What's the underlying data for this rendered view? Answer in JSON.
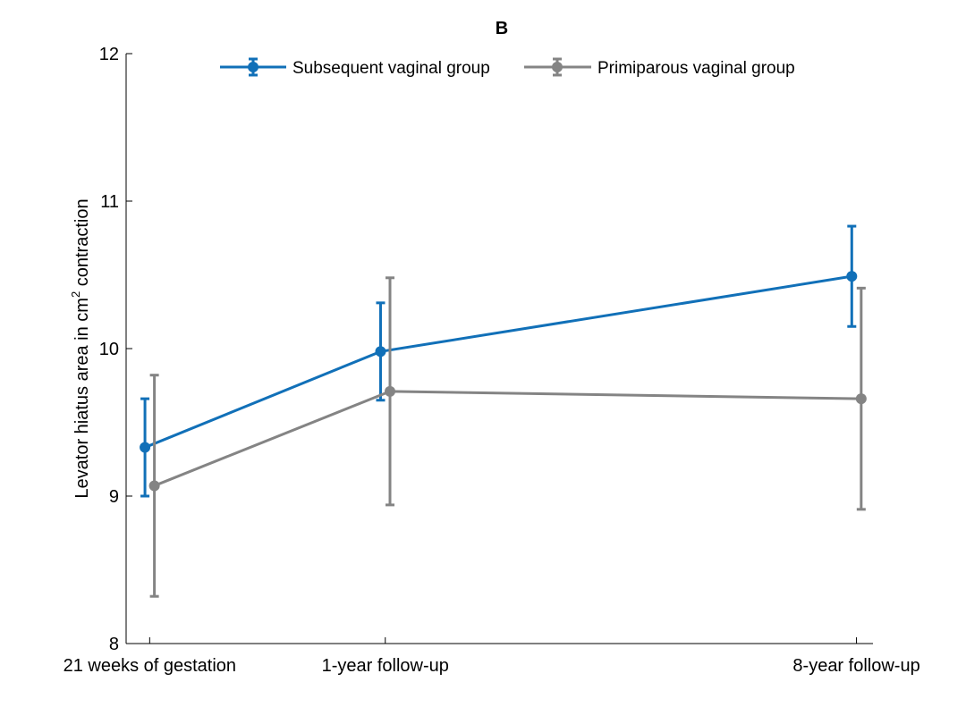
{
  "chart_data": {
    "type": "line",
    "title": "B",
    "ylabel_main": "Levator hiatus area in cm",
    "ylabel_sup": "2",
    "ylabel_tail": " contraction",
    "xlabel": "",
    "categories": [
      "21 weeks of gestation",
      "1-year follow-up",
      "8-year follow-up"
    ],
    "x": [
      0,
      1,
      3
    ],
    "ylim": [
      8,
      12
    ],
    "yticks": [
      "8",
      "9",
      "10",
      "11",
      "12"
    ],
    "grid": false,
    "legend_position": "top",
    "series": [
      {
        "name": "Subsequent vaginal group",
        "color": "#1170b8",
        "values": [
          9.33,
          9.98,
          10.49
        ],
        "err_low": [
          9.0,
          9.65,
          10.15
        ],
        "err_high": [
          9.66,
          10.31,
          10.83
        ]
      },
      {
        "name": "Primiparous vaginal group",
        "color": "#848484",
        "values": [
          9.07,
          9.71,
          9.66
        ],
        "err_low": [
          8.32,
          8.94,
          8.91
        ],
        "err_high": [
          9.82,
          10.48,
          10.41
        ]
      }
    ]
  }
}
